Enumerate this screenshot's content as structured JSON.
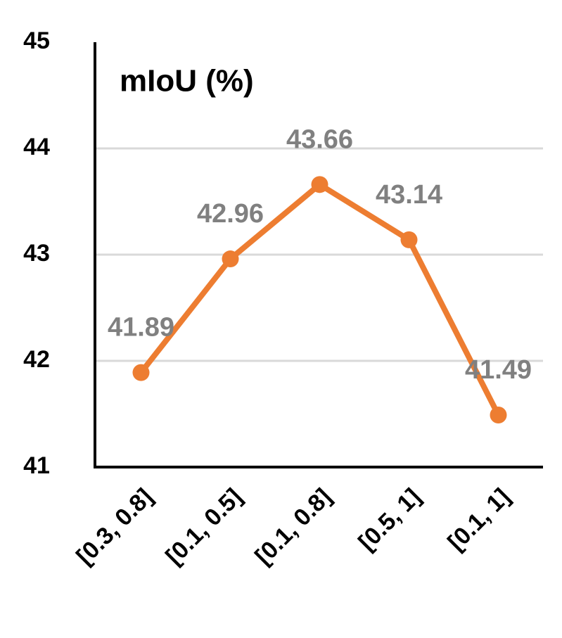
{
  "chart_data": {
    "type": "line",
    "title": "mIoU (%)",
    "categories": [
      "[0.3, 0.8]",
      "[0.1, 0.5]",
      "[0.1, 0.8]",
      "[0.5, 1]",
      "[0.1, 1]"
    ],
    "values": [
      41.89,
      42.96,
      43.66,
      43.14,
      41.49
    ],
    "color": "#ED7D31",
    "ylim": [
      41,
      45
    ],
    "yticks": [
      41,
      42,
      43,
      44,
      45
    ],
    "grid": true
  }
}
